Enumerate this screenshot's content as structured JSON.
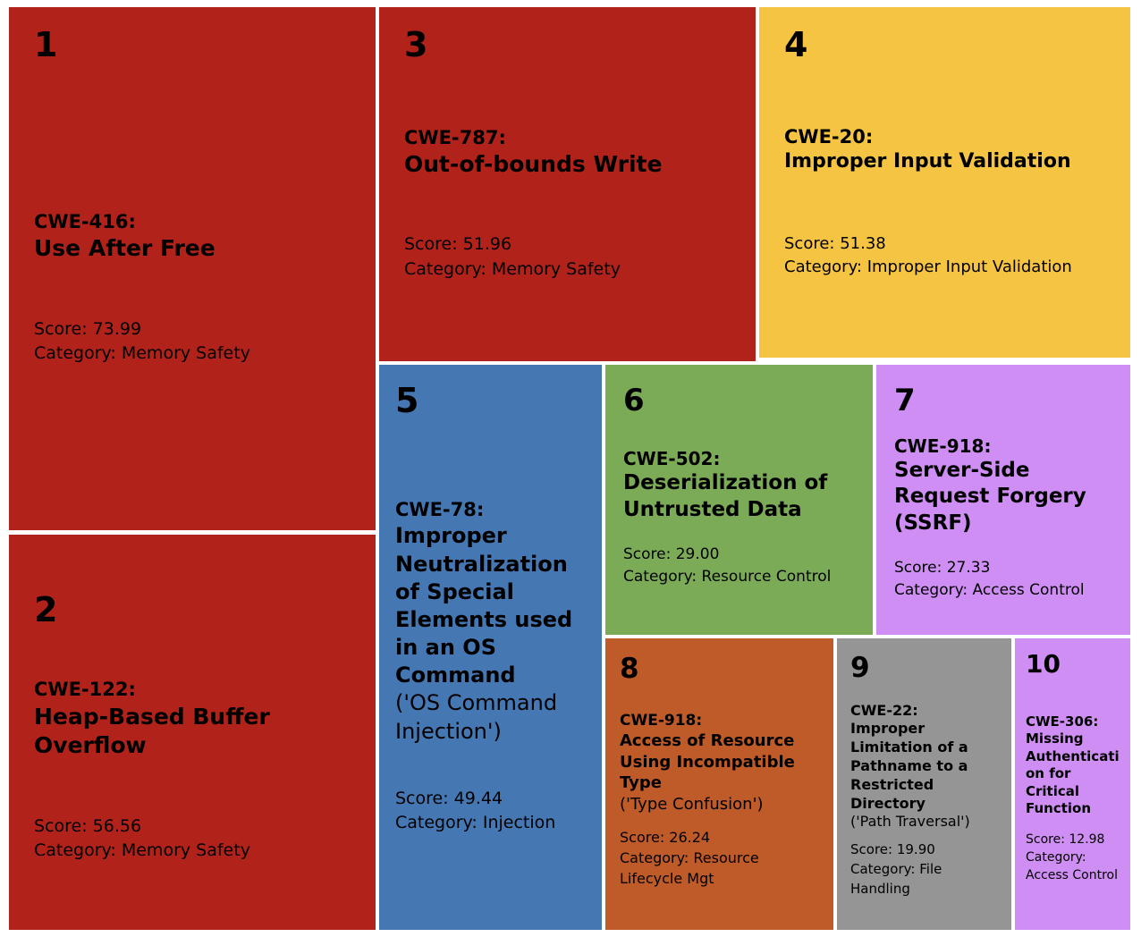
{
  "chart_data": {
    "type": "treemap",
    "description": "Top 10 CWE weaknesses treemap; cell area reflects score",
    "legend_position": "none",
    "items": [
      {
        "rank": "1",
        "cwe": "CWE-416:",
        "name": "Use After Free",
        "qualifier": "",
        "score": 73.99,
        "score_text": "Score: 73.99",
        "category": "Memory Safety",
        "category_text": "Category: Memory Safety",
        "color": "#b1231a"
      },
      {
        "rank": "2",
        "cwe": "CWE-122:",
        "name": "Heap-Based Buffer Overflow",
        "qualifier": "",
        "score": 56.56,
        "score_text": "Score: 56.56",
        "category": "Memory Safety",
        "category_text": "Category: Memory Safety",
        "color": "#b1231a"
      },
      {
        "rank": "3",
        "cwe": "CWE-787:",
        "name": "Out-of-bounds Write",
        "qualifier": "",
        "score": 51.96,
        "score_text": "Score: 51.96",
        "category": "Memory Safety",
        "category_text": "Category: Memory Safety",
        "color": "#b1231a"
      },
      {
        "rank": "4",
        "cwe": "CWE-20:",
        "name": "Improper Input Validation",
        "qualifier": "",
        "score": 51.38,
        "score_text": "Score: 51.38",
        "category": "Improper Input Validation",
        "category_text": "Category: Improper Input Validation",
        "color": "#f6c443"
      },
      {
        "rank": "5",
        "cwe": "CWE-78:",
        "name": "Improper Neutralization of Special Elements used in an OS Command",
        "qualifier": "('OS Command Injection')",
        "score": 49.44,
        "score_text": "Score: 49.44",
        "category": "Injection",
        "category_text": "Category: Injection",
        "color": "#4577b3"
      },
      {
        "rank": "6",
        "cwe": "CWE-502:",
        "name": "Deserialization of Untrusted Data",
        "qualifier": "",
        "score": 29.0,
        "score_text": "Score: 29.00",
        "category": "Resource Control",
        "category_text": "Category: Resource Control",
        "color": "#7cab58"
      },
      {
        "rank": "7",
        "cwe": "CWE-918:",
        "name": "Server-Side Request Forgery (SSRF)",
        "qualifier": "",
        "score": 27.33,
        "score_text": "Score: 27.33",
        "category": "Access Control",
        "category_text": "Category: Access Control",
        "color": "#cf8ef3"
      },
      {
        "rank": "8",
        "cwe": "CWE-918:",
        "name": "Access of Resource Using Incompatible Type",
        "qualifier": "('Type Confusion')",
        "score": 26.24,
        "score_text": "Score: 26.24",
        "category": "Resource Lifecycle Mgt",
        "category_text": "Category: Resource Lifecycle Mgt",
        "color": "#bf5b28"
      },
      {
        "rank": "9",
        "cwe": "CWE-22:",
        "name": "Improper Limitation of a Pathname to a Restricted Directory",
        "qualifier": "('Path Traversal')",
        "score": 19.9,
        "score_text": "Score: 19.90",
        "category": "File Handling",
        "category_text": "Category: File Handling",
        "color": "#959595"
      },
      {
        "rank": "10",
        "cwe": "CWE-306:",
        "name": "Missing Authentication for Critical Function",
        "qualifier": "",
        "score": 12.98,
        "score_text": "Score: 12.98",
        "category": "Access Control",
        "category_text": "Category: Access Control",
        "color": "#cf8ef3"
      }
    ]
  }
}
